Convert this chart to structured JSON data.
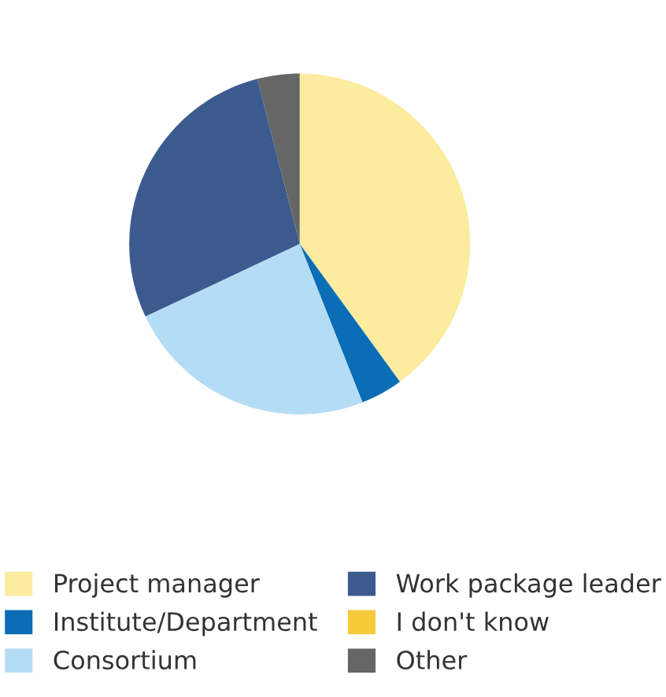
{
  "chart_data": {
    "type": "pie",
    "categories": [
      "Project manager",
      "Institute/Department",
      "Consortium",
      "Work package leader",
      "I don't know",
      "Other"
    ],
    "values": [
      40,
      4,
      24,
      28,
      0,
      4
    ],
    "colors": [
      "#fcec9f",
      "#0b6db5",
      "#b5dcf5",
      "#3b5b8e",
      "#f5cb3c",
      "#666666"
    ],
    "legend": "bottom"
  }
}
